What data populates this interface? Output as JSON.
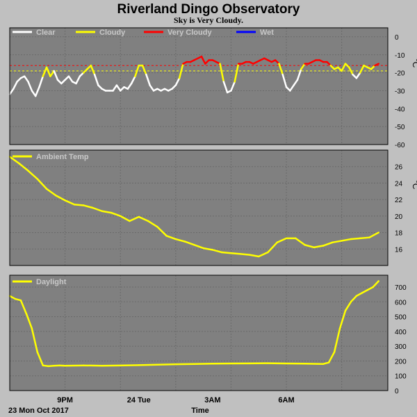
{
  "title": "Riverland Dingo Observatory",
  "subtitle": "Sky is Very Cloudy.",
  "footer": {
    "date": "23 Mon Oct 2017",
    "xlabel": "Time"
  },
  "x_ticks": [
    "9PM",
    "24 Tue",
    "3AM",
    "6AM"
  ],
  "chart_data": [
    {
      "type": "line",
      "panel": "sky",
      "unit": "°C",
      "ylim": [
        -60,
        5
      ],
      "yticks": [
        0,
        -10,
        -20,
        -30,
        -40,
        -50,
        -60
      ],
      "threshold_lines": [
        {
          "value": -19,
          "color": "#ffff00"
        },
        {
          "value": -16,
          "color": "#ff0000"
        }
      ],
      "legend": [
        {
          "name": "Clear",
          "color": "#ffffff"
        },
        {
          "name": "Cloudy",
          "color": "#ffff00"
        },
        {
          "name": "Very Cloudy",
          "color": "#ff0000"
        },
        {
          "name": "Wet",
          "color": "#0000ff"
        }
      ],
      "x_hours": [
        0,
        0.2,
        0.4,
        0.6,
        0.8,
        1.0,
        1.2,
        1.4,
        1.6,
        1.8,
        2.0,
        2.2,
        2.4,
        2.6,
        2.8,
        3.0,
        3.2,
        3.4,
        3.6,
        3.8,
        4.0,
        4.2,
        4.4,
        4.6,
        4.8,
        5.0,
        5.2,
        5.4,
        5.6,
        5.8,
        6.0,
        6.2,
        6.4,
        6.6,
        6.8,
        7.0,
        7.2,
        7.4,
        7.6,
        7.8,
        8.0,
        8.2,
        8.4,
        8.6,
        8.8,
        9.0,
        9.2,
        9.4,
        9.6,
        9.8,
        10.0,
        10.2,
        10.4,
        10.6,
        10.8,
        11.0,
        11.2,
        11.4,
        11.6,
        11.8,
        12.0,
        12.2
      ],
      "values": [
        -32,
        -29,
        -25,
        -23,
        -22,
        -25,
        -30,
        -33,
        -28,
        -22,
        -17,
        -22,
        -19,
        -24,
        -26,
        -24,
        -22,
        -25,
        -26,
        -22,
        -20,
        -18,
        -16,
        -21,
        -27,
        -29,
        -30,
        -30,
        -30,
        -27,
        -30,
        -28,
        -29,
        -26,
        -22,
        -16,
        -16,
        -21,
        -27,
        -30,
        -29,
        -30,
        -29,
        -30,
        -29,
        -27,
        -23,
        -15,
        -14,
        -14,
        -13,
        -12,
        -11,
        -15,
        -13,
        -13,
        -14,
        -15,
        -25,
        -31,
        -30,
        -25
      ]
    },
    {
      "type": "line",
      "panel": "ambient",
      "unit": "°C",
      "ylim": [
        14,
        28
      ],
      "yticks": [
        16,
        18,
        20,
        22,
        24,
        26
      ],
      "legend": [
        {
          "name": "Ambient Temp",
          "color": "#ffff00"
        }
      ],
      "x_hours": [
        0,
        0.5,
        1,
        1.5,
        2,
        2.5,
        3,
        3.5,
        4,
        4.5,
        5,
        5.5,
        6,
        6.5,
        7,
        7.5,
        8,
        8.5,
        9,
        9.5,
        10,
        10.5,
        11,
        11.5,
        12,
        12.5,
        13,
        13.5
      ],
      "values": [
        27.2,
        26.4,
        25.5,
        24.5,
        23.3,
        22.5,
        21.9,
        21.4,
        21.3,
        21.0,
        20.6,
        20.4,
        20.0,
        19.4,
        19.9,
        19.4,
        18.7,
        17.6,
        17.2,
        16.9,
        16.5,
        16.1,
        15.9,
        15.6,
        15.5,
        15.4,
        15.3,
        15.1
      ]
    },
    {
      "type": "line",
      "panel": "daylight",
      "ylim": [
        0,
        780
      ],
      "yticks": [
        0,
        100,
        200,
        300,
        400,
        500,
        600,
        700
      ],
      "legend": [
        {
          "name": "Daylight",
          "color": "#ffff00"
        }
      ],
      "x_hours": [
        0,
        0.3,
        0.6,
        0.9,
        1.2,
        1.5,
        1.8,
        2.1,
        2.4,
        2.7,
        3.0,
        4,
        5,
        6,
        7,
        8,
        9,
        10,
        11,
        12,
        13,
        14,
        15,
        16,
        17,
        17.3,
        17.6,
        17.9,
        18.2,
        18.5,
        18.8,
        19.1,
        19.4,
        19.7,
        20.0
      ],
      "values": [
        640,
        620,
        610,
        520,
        420,
        260,
        170,
        165,
        168,
        170,
        168,
        170,
        168,
        170,
        172,
        175,
        178,
        180,
        182,
        183,
        184,
        185,
        183,
        182,
        180,
        190,
        260,
        420,
        540,
        600,
        640,
        660,
        680,
        700,
        740
      ]
    }
  ],
  "ambient_tail": {
    "x_hours": [
      13.5,
      14,
      14.5,
      15,
      15.5,
      16,
      16.5,
      17,
      17.5,
      18,
      18.5,
      19,
      19.5,
      20
    ],
    "values": [
      15.1,
      15.6,
      16.8,
      17.3,
      17.3,
      16.5,
      16.2,
      16.4,
      16.8,
      17.0,
      17.2,
      17.3,
      17.4,
      18.0
    ]
  },
  "sky_tail": {
    "x_hours": [
      12.4,
      12.6,
      12.8,
      13.0,
      13.2,
      13.4,
      13.6,
      13.8,
      14.0,
      14.2,
      14.4,
      14.6,
      14.8,
      15.0,
      15.2,
      15.4,
      15.6,
      15.8,
      16.0,
      16.2,
      16.4,
      16.6,
      16.8,
      17.0,
      17.2,
      17.4,
      17.6,
      17.8,
      18.0,
      18.2,
      18.4,
      18.6,
      18.8,
      19.0,
      19.2,
      19.4,
      19.6,
      19.8,
      20.0
    ],
    "values": [
      -15,
      -15,
      -14,
      -14,
      -15,
      -14,
      -13,
      -12,
      -13,
      -14,
      -13,
      -15,
      -21,
      -28,
      -30,
      -27,
      -24,
      -18,
      -15,
      -15,
      -14,
      -13,
      -13,
      -14,
      -14,
      -16,
      -18,
      -17,
      -19,
      -15,
      -17,
      -21,
      -23,
      -20,
      -16,
      -17,
      -18,
      -16,
      -15
    ]
  }
}
